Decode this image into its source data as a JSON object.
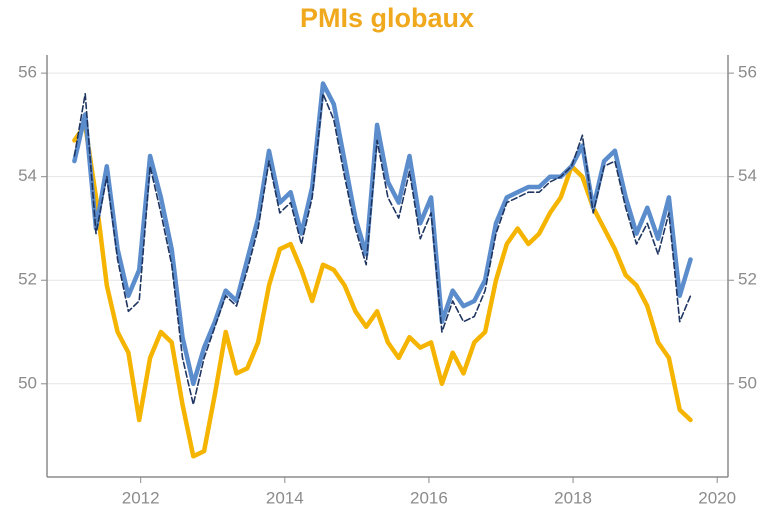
{
  "chart_data": {
    "type": "line",
    "title": "PMIs globaux",
    "x": [
      2011.08,
      2011.23,
      2011.38,
      2011.53,
      2011.68,
      2011.83,
      2011.98,
      2012.13,
      2012.28,
      2012.43,
      2012.58,
      2012.73,
      2012.88,
      2013.03,
      2013.18,
      2013.33,
      2013.48,
      2013.63,
      2013.78,
      2013.93,
      2014.08,
      2014.23,
      2014.38,
      2014.53,
      2014.68,
      2014.83,
      2014.98,
      2015.13,
      2015.28,
      2015.43,
      2015.58,
      2015.73,
      2015.88,
      2016.03,
      2016.18,
      2016.33,
      2016.48,
      2016.63,
      2016.78,
      2016.93,
      2017.08,
      2017.23,
      2017.38,
      2017.53,
      2017.68,
      2017.83,
      2017.98,
      2018.13,
      2018.28,
      2018.43,
      2018.58,
      2018.73,
      2018.88,
      2019.03,
      2019.18,
      2019.33,
      2019.48,
      2019.63
    ],
    "series": [
      {
        "color": "#f5b400",
        "dashed": false,
        "values": [
          54.7,
          55.0,
          53.6,
          51.9,
          51.0,
          50.6,
          49.3,
          50.5,
          51.0,
          50.8,
          49.6,
          48.6,
          48.7,
          49.8,
          51.0,
          50.2,
          50.3,
          50.8,
          51.9,
          52.6,
          52.7,
          52.2,
          51.6,
          52.3,
          52.2,
          51.9,
          51.4,
          51.1,
          51.4,
          50.8,
          50.5,
          50.9,
          50.7,
          50.8,
          50.0,
          50.6,
          50.2,
          50.8,
          51.0,
          52.0,
          52.7,
          53.0,
          52.7,
          52.9,
          53.3,
          53.6,
          54.2,
          54.0,
          53.4,
          53.0,
          52.6,
          52.1,
          51.9,
          51.5,
          50.8,
          50.5,
          49.5,
          49.3
        ]
      },
      {
        "color": "#5b8ccc",
        "dashed": false,
        "values": [
          54.3,
          55.2,
          53.0,
          54.2,
          52.6,
          51.7,
          52.2,
          54.4,
          53.6,
          52.6,
          50.9,
          50.0,
          50.7,
          51.2,
          51.8,
          51.6,
          52.4,
          53.2,
          54.5,
          53.5,
          53.7,
          52.9,
          53.8,
          55.8,
          55.4,
          54.3,
          53.2,
          52.5,
          55.0,
          53.9,
          53.5,
          54.4,
          53.1,
          53.6,
          51.2,
          51.8,
          51.5,
          51.6,
          52.0,
          53.1,
          53.6,
          53.7,
          53.8,
          53.8,
          54.0,
          54.0,
          54.2,
          54.6,
          53.4,
          54.3,
          54.5,
          53.6,
          52.9,
          53.4,
          52.8,
          53.6,
          51.7,
          52.4
        ]
      },
      {
        "color": "#1f3561",
        "dashed": true,
        "values": [
          54.4,
          55.6,
          52.9,
          54.0,
          52.4,
          51.4,
          51.6,
          54.2,
          53.3,
          52.3,
          50.5,
          49.6,
          50.5,
          51.1,
          51.7,
          51.5,
          52.2,
          53.0,
          54.3,
          53.3,
          53.5,
          52.7,
          53.6,
          55.6,
          55.1,
          54.0,
          53.0,
          52.3,
          54.7,
          53.6,
          53.2,
          54.1,
          52.8,
          53.3,
          51.0,
          51.6,
          51.2,
          51.3,
          51.8,
          52.9,
          53.5,
          53.6,
          53.7,
          53.7,
          53.9,
          54.0,
          54.2,
          54.8,
          53.3,
          54.2,
          54.3,
          53.4,
          52.7,
          53.1,
          52.5,
          53.3,
          51.2,
          51.7
        ]
      }
    ],
    "xlim": [
      2010.7,
      2020.15
    ],
    "xticks": [
      2012,
      2014,
      2016,
      2018,
      2020
    ],
    "ylim": [
      48.2,
      56.35
    ],
    "yticks": [
      50,
      52,
      54,
      56
    ],
    "y2lim": [
      48.2,
      56.35
    ],
    "y2ticks": [
      50,
      52,
      54,
      56
    ],
    "grid": true,
    "title_color": "#f0a81c"
  }
}
